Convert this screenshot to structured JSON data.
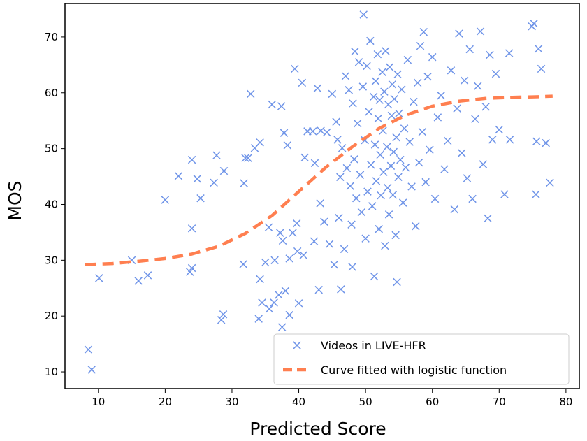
{
  "chart_data": {
    "type": "scatter",
    "xlabel": "Predicted Score",
    "ylabel": "MOS",
    "xlim": [
      5,
      82
    ],
    "ylim": [
      7,
      76
    ],
    "xticks": [
      10,
      20,
      30,
      40,
      50,
      60,
      70,
      80
    ],
    "yticks": [
      10,
      20,
      30,
      40,
      50,
      60,
      70
    ],
    "grid": false,
    "legend_position": "lower right",
    "colors": {
      "scatter": "#6f94e8",
      "curve": "#ff7f50"
    },
    "series": [
      {
        "name": "Videos in LIVE-HFR",
        "kind": "scatter",
        "points": [
          [
            8.5,
            14.0
          ],
          [
            9.0,
            10.4
          ],
          [
            10.1,
            26.8
          ],
          [
            15.0,
            30.0
          ],
          [
            16.0,
            26.3
          ],
          [
            17.4,
            27.3
          ],
          [
            20.0,
            40.8
          ],
          [
            22.0,
            45.1
          ],
          [
            23.7,
            27.9
          ],
          [
            24.0,
            28.6
          ],
          [
            24.0,
            35.7
          ],
          [
            24.0,
            48.0
          ],
          [
            24.8,
            44.6
          ],
          [
            25.3,
            41.1
          ],
          [
            27.3,
            43.9
          ],
          [
            27.7,
            48.8
          ],
          [
            28.4,
            19.3
          ],
          [
            28.7,
            20.3
          ],
          [
            28.8,
            46.0
          ],
          [
            31.7,
            29.3
          ],
          [
            31.8,
            43.8
          ],
          [
            32.0,
            48.3
          ],
          [
            32.4,
            48.3
          ],
          [
            32.8,
            59.8
          ],
          [
            33.4,
            50.1
          ],
          [
            34.0,
            19.5
          ],
          [
            34.2,
            51.1
          ],
          [
            34.2,
            26.6
          ],
          [
            34.5,
            22.4
          ],
          [
            35.0,
            29.6
          ],
          [
            35.5,
            35.9
          ],
          [
            35.6,
            21.3
          ],
          [
            36.0,
            57.9
          ],
          [
            36.3,
            22.4
          ],
          [
            36.4,
            30.0
          ],
          [
            37.0,
            23.8
          ],
          [
            37.2,
            34.9
          ],
          [
            37.4,
            57.6
          ],
          [
            37.5,
            18.0
          ],
          [
            37.6,
            33.5
          ],
          [
            37.8,
            52.8
          ],
          [
            38.0,
            24.5
          ],
          [
            38.3,
            50.6
          ],
          [
            38.6,
            30.3
          ],
          [
            38.6,
            20.2
          ],
          [
            39.1,
            34.9
          ],
          [
            39.4,
            64.3
          ],
          [
            39.7,
            36.6
          ],
          [
            39.8,
            31.6
          ],
          [
            40.0,
            22.3
          ],
          [
            40.5,
            61.8
          ],
          [
            40.7,
            30.9
          ],
          [
            40.9,
            48.4
          ],
          [
            41.3,
            53.1
          ],
          [
            42.1,
            53.1
          ],
          [
            42.3,
            33.4
          ],
          [
            42.4,
            47.4
          ],
          [
            42.8,
            60.8
          ],
          [
            43.0,
            24.7
          ],
          [
            43.2,
            40.2
          ],
          [
            43.3,
            53.2
          ],
          [
            43.8,
            36.9
          ],
          [
            44.2,
            52.9
          ],
          [
            44.6,
            32.9
          ],
          [
            45.0,
            59.8
          ],
          [
            45.3,
            29.2
          ],
          [
            45.6,
            54.8
          ],
          [
            45.8,
            51.6
          ],
          [
            46.0,
            37.6
          ],
          [
            46.2,
            44.9
          ],
          [
            46.3,
            24.8
          ],
          [
            46.5,
            50.1
          ],
          [
            46.8,
            32.0
          ],
          [
            47.0,
            63.0
          ],
          [
            47.2,
            46.5
          ],
          [
            47.5,
            60.5
          ],
          [
            47.7,
            43.3
          ],
          [
            47.9,
            36.4
          ],
          [
            48.0,
            28.8
          ],
          [
            48.1,
            58.1
          ],
          [
            48.3,
            48.1
          ],
          [
            48.4,
            67.4
          ],
          [
            48.6,
            41.1
          ],
          [
            48.8,
            54.5
          ],
          [
            49.0,
            65.5
          ],
          [
            49.2,
            45.3
          ],
          [
            49.4,
            38.6
          ],
          [
            49.6,
            61.1
          ],
          [
            49.7,
            74.0
          ],
          [
            49.9,
            51.5
          ],
          [
            50.0,
            33.9
          ],
          [
            50.2,
            64.8
          ],
          [
            50.3,
            42.3
          ],
          [
            50.5,
            56.6
          ],
          [
            50.7,
            69.3
          ],
          [
            50.8,
            47.1
          ],
          [
            51.0,
            39.7
          ],
          [
            51.2,
            59.3
          ],
          [
            51.3,
            27.1
          ],
          [
            51.4,
            50.7
          ],
          [
            51.5,
            62.1
          ],
          [
            51.6,
            44.2
          ],
          [
            51.8,
            66.9
          ],
          [
            51.9,
            55.4
          ],
          [
            52.0,
            35.6
          ],
          [
            52.1,
            58.7
          ],
          [
            52.2,
            48.9
          ],
          [
            52.3,
            41.6
          ],
          [
            52.5,
            63.7
          ],
          [
            52.6,
            53.2
          ],
          [
            52.7,
            45.8
          ],
          [
            52.8,
            60.2
          ],
          [
            52.9,
            32.6
          ],
          [
            53.0,
            67.5
          ],
          [
            53.2,
            50.3
          ],
          [
            53.3,
            43.0
          ],
          [
            53.4,
            57.9
          ],
          [
            53.5,
            38.2
          ],
          [
            53.6,
            64.6
          ],
          [
            53.8,
            46.9
          ],
          [
            53.9,
            55.9
          ],
          [
            54.0,
            61.5
          ],
          [
            54.1,
            41.7
          ],
          [
            54.2,
            49.4
          ],
          [
            54.3,
            58.9
          ],
          [
            54.5,
            34.5
          ],
          [
            54.6,
            52.0
          ],
          [
            54.7,
            26.1
          ],
          [
            54.8,
            63.3
          ],
          [
            54.9,
            44.9
          ],
          [
            55.0,
            56.3
          ],
          [
            55.2,
            48.0
          ],
          [
            55.4,
            60.6
          ],
          [
            55.6,
            40.3
          ],
          [
            55.8,
            53.6
          ],
          [
            56.0,
            46.6
          ],
          [
            56.3,
            65.9
          ],
          [
            56.6,
            51.2
          ],
          [
            56.9,
            43.2
          ],
          [
            57.2,
            58.4
          ],
          [
            57.5,
            36.1
          ],
          [
            57.8,
            61.8
          ],
          [
            58.0,
            47.5
          ],
          [
            58.2,
            68.4
          ],
          [
            58.5,
            53.0
          ],
          [
            58.7,
            70.9
          ],
          [
            59.0,
            44.0
          ],
          [
            59.3,
            62.9
          ],
          [
            59.6,
            49.8
          ],
          [
            60.0,
            66.4
          ],
          [
            60.4,
            41.0
          ],
          [
            60.8,
            55.6
          ],
          [
            61.3,
            59.5
          ],
          [
            61.8,
            46.3
          ],
          [
            62.3,
            51.4
          ],
          [
            62.8,
            64.0
          ],
          [
            63.3,
            39.1
          ],
          [
            63.7,
            57.2
          ],
          [
            64.0,
            70.6
          ],
          [
            64.4,
            49.2
          ],
          [
            64.8,
            62.2
          ],
          [
            65.2,
            44.7
          ],
          [
            65.6,
            67.8
          ],
          [
            66.0,
            41.0
          ],
          [
            66.4,
            55.3
          ],
          [
            66.8,
            61.2
          ],
          [
            67.2,
            71.0
          ],
          [
            67.6,
            47.2
          ],
          [
            68.0,
            57.5
          ],
          [
            68.3,
            37.5
          ],
          [
            68.6,
            66.8
          ],
          [
            69.0,
            51.6
          ],
          [
            69.5,
            63.4
          ],
          [
            70.0,
            53.4
          ],
          [
            70.8,
            41.8
          ],
          [
            71.5,
            67.1
          ],
          [
            71.6,
            51.6
          ],
          [
            74.9,
            71.9
          ],
          [
            75.2,
            72.4
          ],
          [
            75.5,
            41.8
          ],
          [
            75.6,
            51.3
          ],
          [
            75.9,
            67.9
          ],
          [
            76.3,
            64.3
          ],
          [
            77.0,
            51.0
          ],
          [
            77.6,
            43.9
          ]
        ]
      },
      {
        "name": "Curve fitted with logistic function",
        "kind": "line",
        "style": "dashed",
        "x": [
          8,
          12,
          16,
          20,
          24,
          28,
          32,
          36,
          40,
          44,
          48,
          52,
          56,
          60,
          64,
          68,
          72,
          76,
          78
        ],
        "y": [
          29.2,
          29.4,
          29.8,
          30.3,
          31.1,
          32.5,
          34.8,
          38.0,
          42.3,
          46.6,
          50.3,
          53.6,
          56.0,
          57.6,
          58.5,
          59.0,
          59.2,
          59.3,
          59.4
        ]
      }
    ]
  }
}
